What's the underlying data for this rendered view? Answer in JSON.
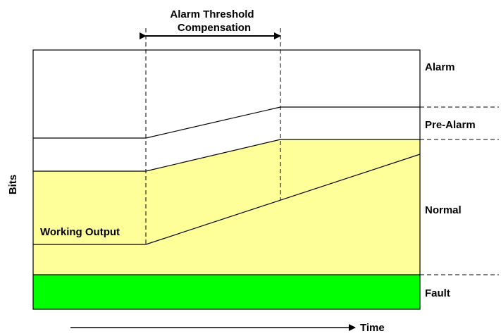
{
  "diagram": {
    "annotation": {
      "line1": "Alarm Threshold",
      "line2": "Compensation"
    },
    "y_axis_label": "Bits",
    "x_axis_label": "Time",
    "zones": {
      "alarm": "Alarm",
      "pre_alarm": "Pre-Alarm",
      "normal": "Normal",
      "fault": "Fault"
    },
    "curve_label": "Working Output"
  },
  "colors": {
    "normal_fill": "#ffff99",
    "fault_fill": "#00ff00",
    "line": "#000000",
    "background": "#ffffff"
  }
}
